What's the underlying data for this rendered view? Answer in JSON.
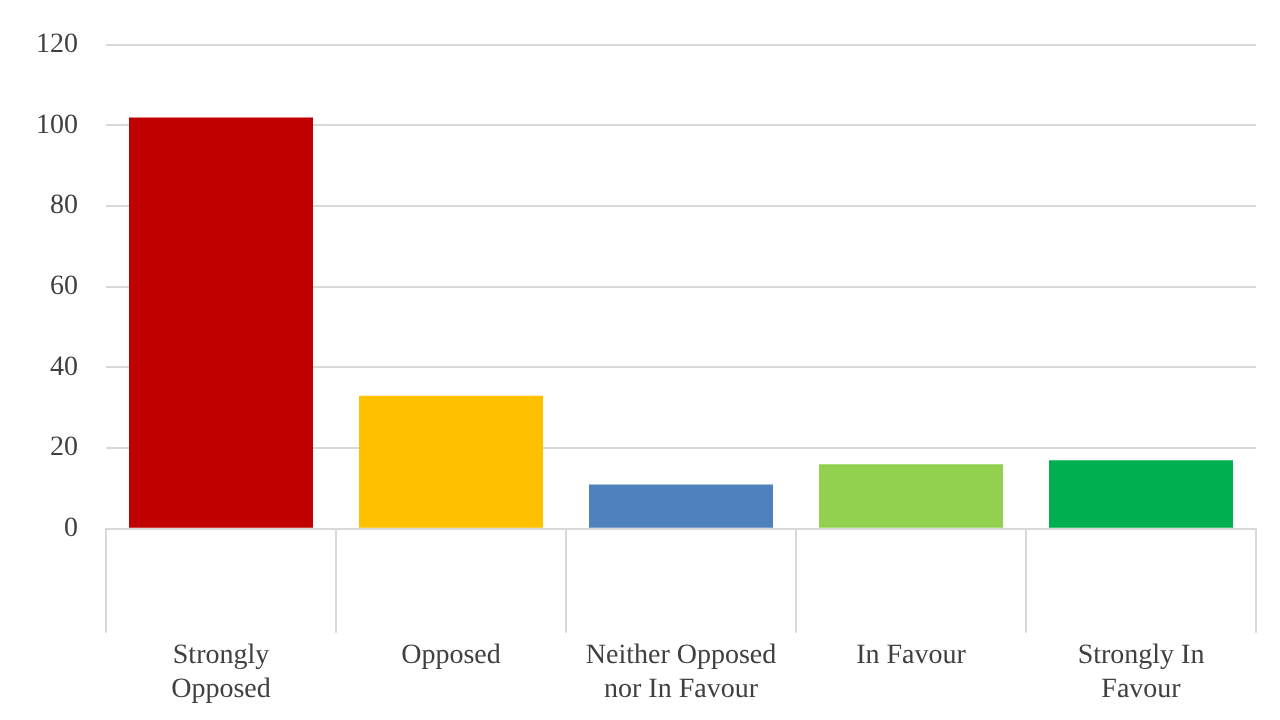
{
  "chart_data": {
    "type": "bar",
    "categories": [
      "Strongly Opposed",
      "Opposed",
      "Neither Opposed nor In Favour",
      "In Favour",
      "Strongly In Favour"
    ],
    "values": [
      102,
      33,
      11,
      16,
      17
    ],
    "colors": [
      "#c00000",
      "#ffc000",
      "#4f81bd",
      "#92d050",
      "#00b050"
    ],
    "ylim": [
      0,
      120
    ],
    "yticks": [
      0,
      20,
      40,
      60,
      80,
      100,
      120
    ],
    "grid": "y",
    "legend": false
  }
}
